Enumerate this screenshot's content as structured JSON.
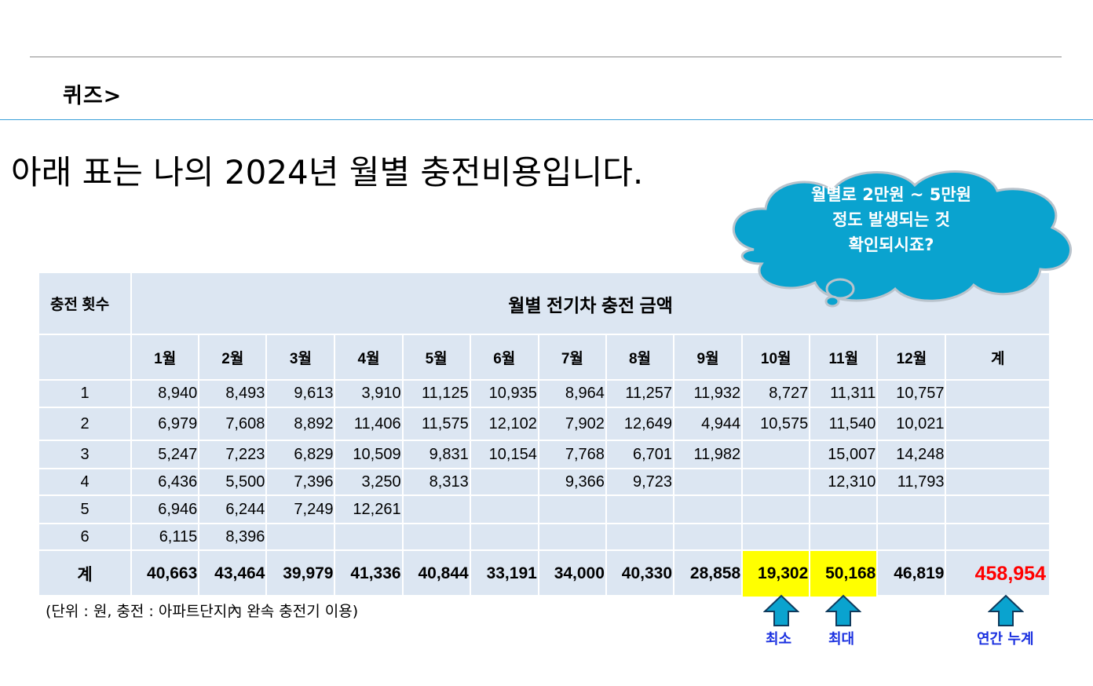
{
  "header": {
    "quiz_label": "퀴즈>"
  },
  "headline": "아래 표는 나의 2024년 월별 충전비용입니다.",
  "cloud": {
    "line1": "월별로 2만원 ~ 5만원",
    "line2": "정도 발생되는 것",
    "line3": "확인되시죠?"
  },
  "table": {
    "corner_label": "충전 횟수",
    "title": "월별 전기차 충전 금액",
    "months": [
      "1월",
      "2월",
      "3월",
      "4월",
      "5월",
      "6월",
      "7월",
      "8월",
      "9월",
      "10월",
      "11월",
      "12월"
    ],
    "total_col_label": "계",
    "rows": [
      {
        "n": "1",
        "vals": [
          "8,940",
          "8,493",
          "9,613",
          "3,910",
          "11,125",
          "10,935",
          "8,964",
          "11,257",
          "11,932",
          "8,727",
          "11,311",
          "10,757"
        ]
      },
      {
        "n": "2",
        "vals": [
          "6,979",
          "7,608",
          "8,892",
          "11,406",
          "11,575",
          "12,102",
          "7,902",
          "12,649",
          "4,944",
          "10,575",
          "11,540",
          "10,021"
        ]
      },
      {
        "n": "3",
        "vals": [
          "5,247",
          "7,223",
          "6,829",
          "10,509",
          "9,831",
          "10,154",
          "7,768",
          "6,701",
          "11,982",
          "",
          "15,007",
          "14,248"
        ]
      },
      {
        "n": "4",
        "vals": [
          "6,436",
          "5,500",
          "7,396",
          "3,250",
          "8,313",
          "",
          "9,366",
          "9,723",
          "",
          "",
          "12,310",
          "11,793"
        ]
      },
      {
        "n": "5",
        "vals": [
          "6,946",
          "6,244",
          "7,249",
          "12,261",
          "",
          "",
          "",
          "",
          "",
          "",
          "",
          ""
        ]
      },
      {
        "n": "6",
        "vals": [
          "6,115",
          "8,396",
          "",
          "",
          "",
          "",
          "",
          "",
          "",
          "",
          "",
          ""
        ]
      }
    ],
    "total_row_label": "계",
    "totals": [
      "40,663",
      "43,464",
      "39,979",
      "41,336",
      "40,844",
      "33,191",
      "34,000",
      "40,330",
      "28,858",
      "19,302",
      "50,168",
      "46,819"
    ],
    "grand_total": "458,954"
  },
  "note": "(단위 : 원,   충전 : 아파트단지內 완속 충전기 이용)",
  "annotations": {
    "min_label": "최소",
    "max_label": "최대",
    "annual_label": "연간 누계"
  },
  "colors": {
    "table_bg": "#dce6f2",
    "highlight": "#ffff00",
    "cloud": "#0aa3cf",
    "grand_total": "#ff0000",
    "label_blue": "#1a30e0",
    "arrow": "#0aa3cf"
  }
}
